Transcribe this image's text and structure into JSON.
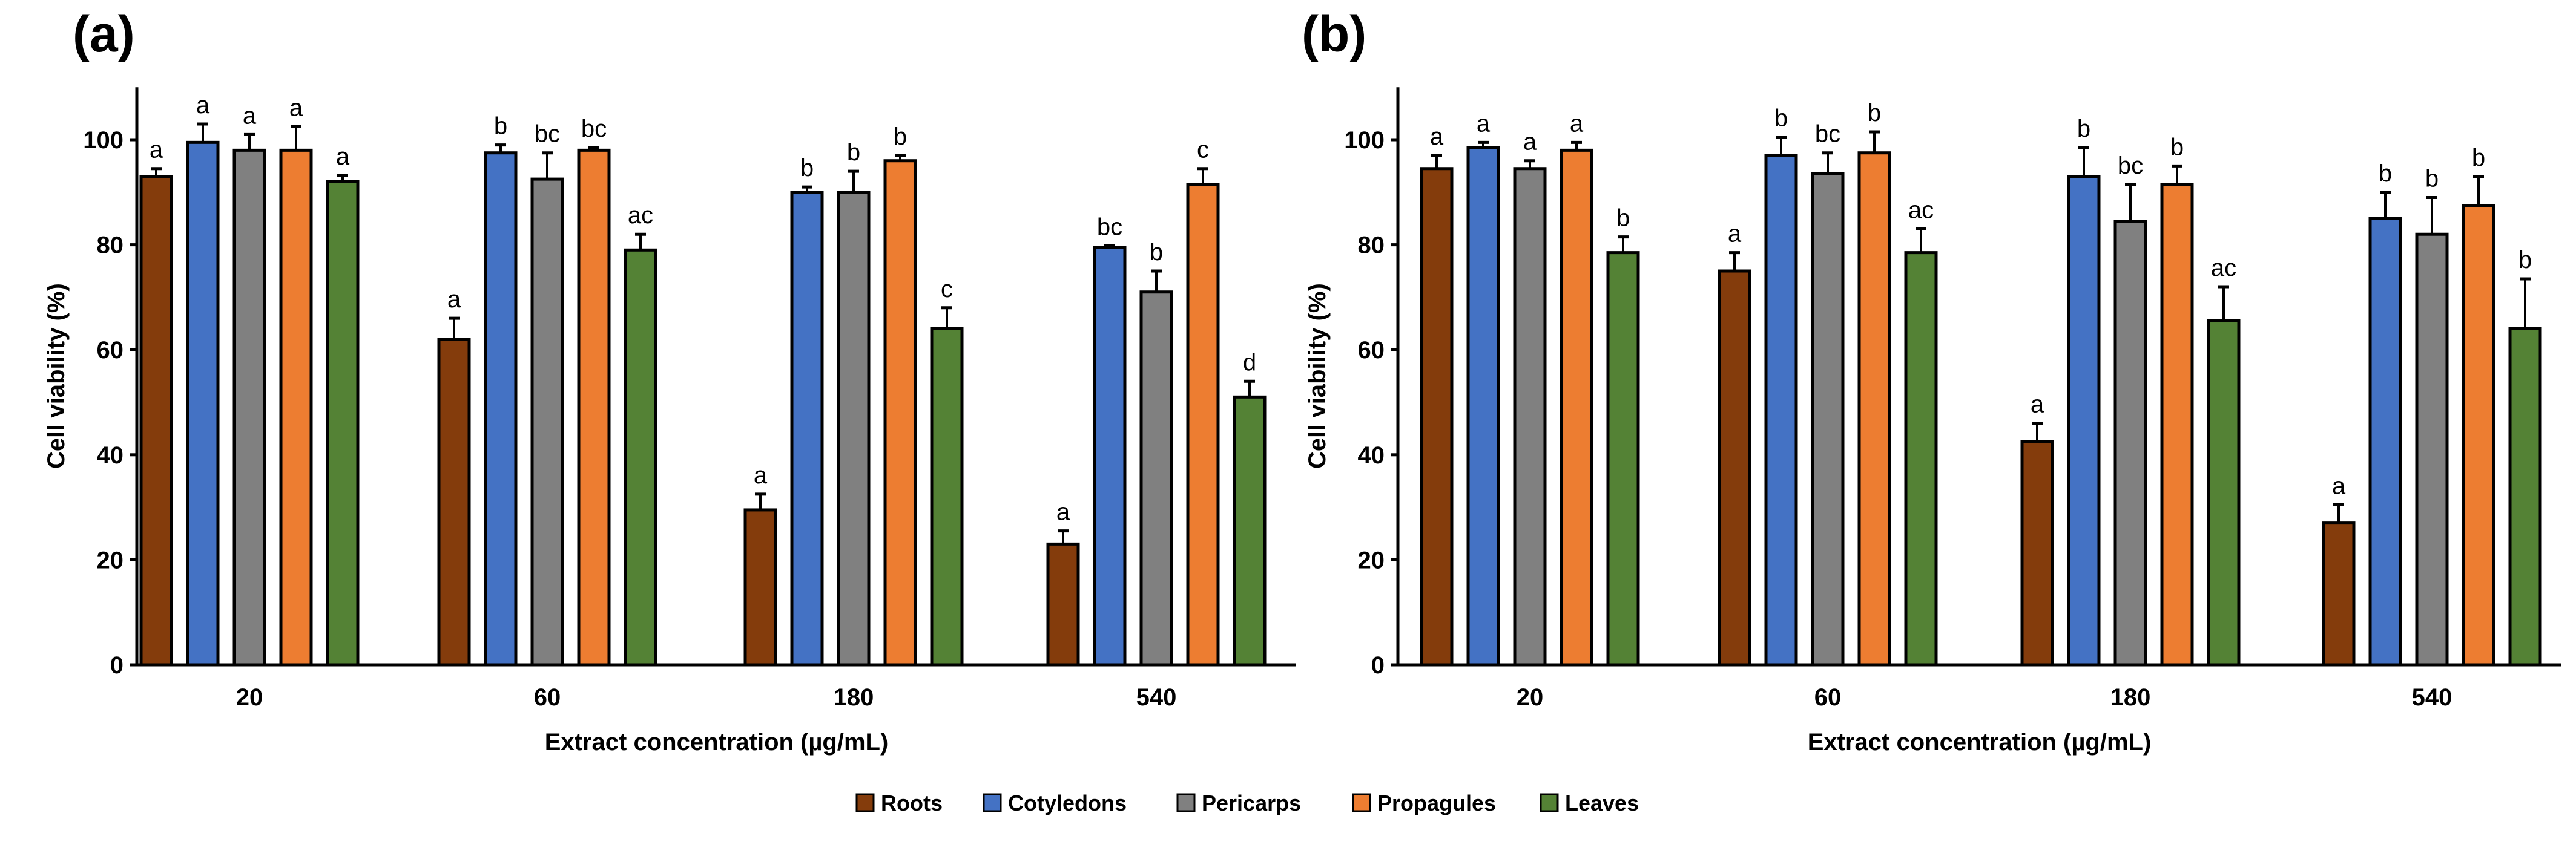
{
  "chart_data": [
    {
      "type": "bar",
      "title": "(a)",
      "xlabel": "Extract concentration (µg/mL)",
      "ylabel": "Cell viability (%)",
      "ylim": [
        0,
        110
      ],
      "yticks": [
        0,
        20,
        40,
        60,
        80,
        100
      ],
      "grid": false,
      "categories": [
        "20",
        "60",
        "180",
        "540"
      ],
      "series": [
        {
          "name": "Roots",
          "values": [
            93,
            62,
            29.5,
            23
          ],
          "errors": [
            1.5,
            4,
            3,
            2.5
          ],
          "letters": [
            "a",
            "a",
            "a",
            "a"
          ]
        },
        {
          "name": "Cotyledons",
          "values": [
            99.5,
            97.5,
            90,
            79.5
          ],
          "errors": [
            3.5,
            1.5,
            1,
            0.3
          ],
          "letters": [
            "a",
            "b",
            "b",
            "bc"
          ]
        },
        {
          "name": "Pericarps",
          "values": [
            98,
            92.5,
            90,
            71
          ],
          "errors": [
            3,
            5,
            4,
            4
          ],
          "letters": [
            "a",
            "bc",
            "b",
            "b"
          ]
        },
        {
          "name": "Propagules",
          "values": [
            98,
            98,
            96,
            91.5
          ],
          "errors": [
            4.5,
            0.5,
            1,
            3
          ],
          "letters": [
            "a",
            "bc",
            "b",
            "c"
          ]
        },
        {
          "name": "Leaves",
          "values": [
            92,
            79,
            64,
            51
          ],
          "errors": [
            1.2,
            3,
            4,
            3
          ],
          "letters": [
            "a",
            "ac",
            "c",
            "d"
          ]
        }
      ]
    },
    {
      "type": "bar",
      "title": "(b)",
      "xlabel": "Extract concentration  (µg/mL)",
      "ylabel": "Cell viability (%)",
      "ylim": [
        0,
        110
      ],
      "yticks": [
        0,
        20,
        40,
        60,
        80,
        100
      ],
      "grid": false,
      "categories": [
        "20",
        "60",
        "180",
        "540"
      ],
      "series": [
        {
          "name": "Roots",
          "values": [
            94.5,
            75,
            42.5,
            27
          ],
          "errors": [
            2.5,
            3.5,
            3.5,
            3.5
          ],
          "letters": [
            "a",
            "a",
            "a",
            "a"
          ]
        },
        {
          "name": "Cotyledons",
          "values": [
            98.5,
            97,
            93,
            85
          ],
          "errors": [
            1,
            3.5,
            5.5,
            5
          ],
          "letters": [
            "a",
            "b",
            "b",
            "b"
          ]
        },
        {
          "name": "Pericarps",
          "values": [
            94.5,
            93.5,
            84.5,
            82
          ],
          "errors": [
            1.5,
            4,
            7,
            7
          ],
          "letters": [
            "a",
            "bc",
            "bc",
            "b"
          ]
        },
        {
          "name": "Propagules",
          "values": [
            98,
            97.5,
            91.5,
            87.5
          ],
          "errors": [
            1.5,
            4,
            3.5,
            5.5
          ],
          "letters": [
            "a",
            "b",
            "b",
            "b"
          ]
        },
        {
          "name": "Leaves",
          "values": [
            78.5,
            78.5,
            65.5,
            64
          ],
          "errors": [
            3,
            4.5,
            6.5,
            9.5
          ],
          "letters": [
            "b",
            "ac",
            "ac",
            "b"
          ]
        }
      ]
    }
  ],
  "legend": {
    "placement": "bottom-center",
    "items": [
      "Roots",
      "Cotyledons",
      "Pericarps",
      "Propagules",
      "Leaves"
    ]
  },
  "colors": {
    "Roots": "#843c0c",
    "Cotyledons": "#4472c4",
    "Pericarps": "#808080",
    "Propagules": "#ed7d31",
    "Leaves": "#548235"
  }
}
